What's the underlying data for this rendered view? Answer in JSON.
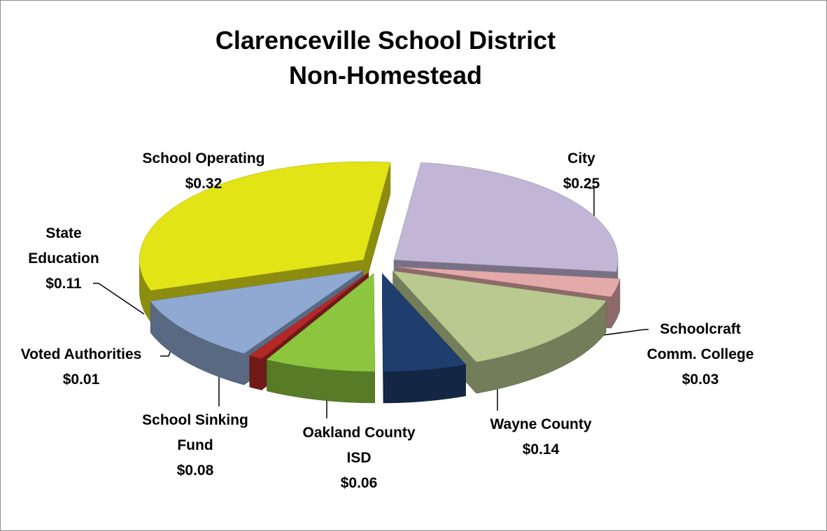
{
  "chart_data": {
    "type": "pie3d",
    "title": "Clarenceville School District Non-Homestead",
    "categories": [
      "City",
      "Schoolcraft Comm. College",
      "Wayne County",
      "Oakland County ISD",
      "School Sinking Fund",
      "Voted Authorities",
      "State Education",
      "School Operating"
    ],
    "values": [
      0.25,
      0.03,
      0.14,
      0.06,
      0.08,
      0.01,
      0.11,
      0.32
    ],
    "value_labels": [
      "$0.25",
      "$0.03",
      "$0.14",
      "$0.06",
      "$0.08",
      "$0.01",
      "$0.11",
      "$0.32"
    ],
    "colors": [
      "#c2b6d6",
      "#e4a9a9",
      "#b9c98f",
      "#1f3e6e",
      "#8cc63f",
      "#b42828",
      "#8fa9d2",
      "#e2e416"
    ]
  }
}
